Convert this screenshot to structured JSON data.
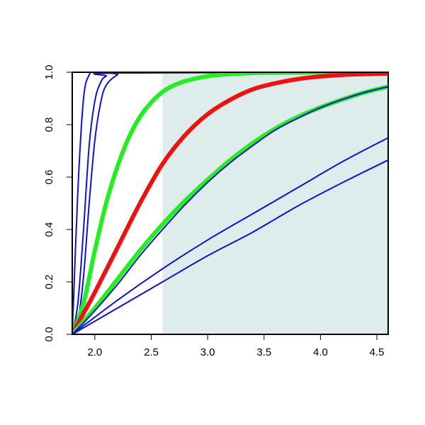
{
  "chart_data": {
    "type": "line",
    "title": "",
    "xlabel": "",
    "ylabel": "",
    "xlim": [
      1.8,
      4.6
    ],
    "ylim": [
      0.0,
      1.0
    ],
    "x_ticks": [
      2.0,
      2.5,
      3.0,
      3.5,
      4.0,
      4.5
    ],
    "x_tick_labels": [
      "2.0",
      "2.5",
      "3.0",
      "3.5",
      "4.0",
      "4.5"
    ],
    "y_ticks": [
      0.0,
      0.2,
      0.4,
      0.6,
      0.8,
      1.0
    ],
    "y_tick_labels": [
      "0.0",
      "0.2",
      "0.4",
      "0.6",
      "0.8",
      "1.0"
    ],
    "grid": false,
    "legend": "none",
    "shaded_region": {
      "x_from": 2.6,
      "x_to": 4.6,
      "color": "#deecec"
    },
    "colors": {
      "blue": "#1010d8",
      "green": "#22ee22",
      "red": "#ee1111"
    },
    "series": [
      {
        "color": "blue",
        "width": "thin",
        "x": [
          1.8,
          1.85,
          1.9,
          1.95,
          2.0,
          2.1,
          4.6
        ],
        "y": [
          0.0,
          0.55,
          0.9,
          0.99,
          1.0,
          1.0,
          1.0
        ]
      },
      {
        "color": "blue",
        "width": "thin",
        "x": [
          1.8,
          1.85,
          1.9,
          1.95,
          2.0,
          2.05,
          2.1,
          2.2,
          4.6
        ],
        "y": [
          0.0,
          0.12,
          0.4,
          0.72,
          0.89,
          0.96,
          0.985,
          0.997,
          1.0
        ]
      },
      {
        "color": "blue",
        "width": "thin",
        "x": [
          1.8,
          1.85,
          1.9,
          1.95,
          2.0,
          2.05,
          2.1,
          2.2,
          2.3,
          4.6
        ],
        "y": [
          0.0,
          0.05,
          0.22,
          0.5,
          0.74,
          0.88,
          0.95,
          0.99,
          1.0,
          1.0
        ]
      },
      {
        "color": "green",
        "width": "thick",
        "x": [
          1.8,
          1.9,
          2.0,
          2.1,
          2.2,
          2.3,
          2.4,
          2.5,
          2.6,
          2.7,
          2.8,
          3.0,
          3.2,
          3.5,
          4.0,
          4.6
        ],
        "y": [
          0.0,
          0.12,
          0.32,
          0.5,
          0.64,
          0.75,
          0.83,
          0.885,
          0.925,
          0.95,
          0.966,
          0.985,
          0.993,
          0.998,
          1.0,
          1.0
        ]
      },
      {
        "color": "red",
        "width": "thick",
        "x": [
          1.8,
          1.9,
          2.0,
          2.2,
          2.4,
          2.6,
          2.8,
          3.0,
          3.2,
          3.4,
          3.6,
          3.8,
          4.0,
          4.2,
          4.4,
          4.6
        ],
        "y": [
          0.0,
          0.08,
          0.16,
          0.33,
          0.5,
          0.65,
          0.76,
          0.84,
          0.895,
          0.935,
          0.958,
          0.974,
          0.984,
          0.99,
          0.993,
          0.995
        ]
      },
      {
        "color": "green",
        "width": "thick",
        "x": [
          1.8,
          2.0,
          2.2,
          2.4,
          2.6,
          2.8,
          3.0,
          3.2,
          3.4,
          3.6,
          3.8,
          4.0,
          4.2,
          4.4,
          4.6
        ],
        "y": [
          0.0,
          0.1,
          0.21,
          0.32,
          0.42,
          0.51,
          0.59,
          0.665,
          0.73,
          0.785,
          0.83,
          0.866,
          0.897,
          0.924,
          0.945
        ]
      },
      {
        "color": "blue",
        "width": "thin",
        "x": [
          1.8,
          2.0,
          2.2,
          2.4,
          2.6,
          2.8,
          3.0,
          3.2,
          3.4,
          3.6,
          3.8,
          4.0,
          4.2,
          4.4,
          4.6
        ],
        "y": [
          0.0,
          0.09,
          0.19,
          0.3,
          0.4,
          0.495,
          0.58,
          0.655,
          0.72,
          0.78,
          0.825,
          0.865,
          0.897,
          0.924,
          0.945
        ]
      },
      {
        "color": "blue",
        "width": "thin",
        "x": [
          1.8,
          2.2,
          2.6,
          3.0,
          3.4,
          3.8,
          4.2,
          4.6
        ],
        "y": [
          0.0,
          0.13,
          0.25,
          0.36,
          0.46,
          0.56,
          0.66,
          0.75
        ]
      },
      {
        "color": "blue",
        "width": "thin",
        "x": [
          1.8,
          2.2,
          2.6,
          3.0,
          3.4,
          3.8,
          4.2,
          4.6
        ],
        "y": [
          0.0,
          0.1,
          0.2,
          0.3,
          0.39,
          0.49,
          0.58,
          0.665
        ]
      }
    ]
  }
}
